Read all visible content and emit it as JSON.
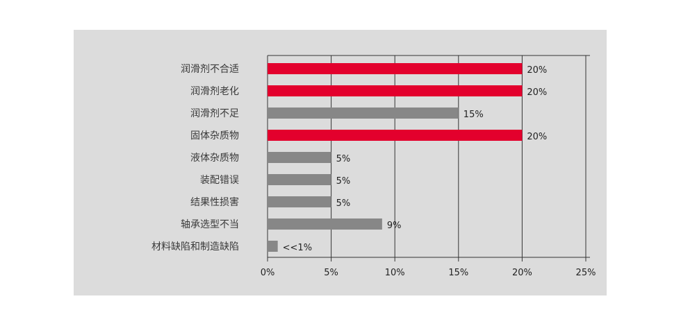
{
  "chart_data": {
    "type": "bar",
    "orientation": "horizontal",
    "categories": [
      "润滑剂不合适",
      "润滑剂老化",
      "润滑剂不足",
      "固体杂质物",
      "液体杂质物",
      "装配错误",
      "结果性损害",
      "轴承选型不当",
      "材料缺陷和制造缺陷"
    ],
    "values": [
      20,
      20,
      15,
      20,
      5,
      5,
      5,
      9,
      0.8
    ],
    "value_labels": [
      "20%",
      "20%",
      "15%",
      "20%",
      "5%",
      "5%",
      "5%",
      "9%",
      "<<1%"
    ],
    "xticks": [
      0,
      5,
      10,
      15,
      20,
      25
    ],
    "xtick_labels": [
      "0%",
      "5%",
      "10%",
      "15%",
      "20%",
      "25%"
    ],
    "xlim": [
      0,
      25
    ],
    "grid": true,
    "title": "",
    "xlabel": "",
    "ylabel": ""
  },
  "colors": {
    "panel_background": "#dcdcdc",
    "highlight_bar": "#e3002d",
    "normal_bar": "#878787",
    "axis": "#333333"
  },
  "highlight_categories": [
    "润滑剂不合适",
    "润滑剂老化",
    "固体杂质物"
  ]
}
